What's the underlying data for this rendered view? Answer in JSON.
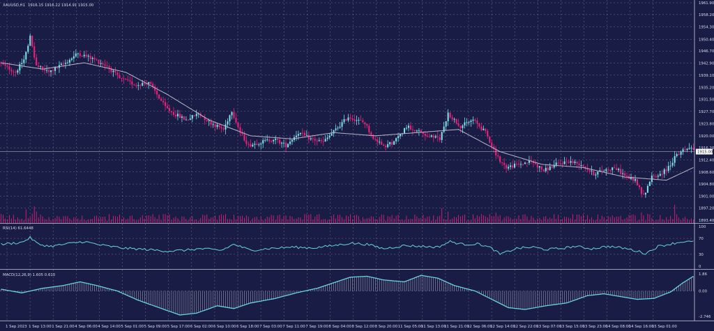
{
  "window": {
    "symbol": "XAUUSD,H1",
    "ohlc": "1916.15 1916.22 1914.91 1915.00"
  },
  "colors": {
    "background": "#191d45",
    "bull": "#7fdfe8",
    "bear": "#e8237a",
    "ma_line": "#b8b8c8",
    "rsi_line": "#69d3e0",
    "macd_line": "#69d3e0",
    "volume": "#d7227a",
    "grid": "#b8bcd6",
    "current_price_tag": "#ffffff"
  },
  "chart_data": [
    {
      "type": "candlestick",
      "name": "price",
      "title": "XAUUSD,H1",
      "y_ticks": [
        "1961.90",
        "1958.20",
        "1954.30",
        "1950.40",
        "1946.70",
        "1942.90",
        "1939.10",
        "1935.20",
        "1931.50",
        "1927.70",
        "1923.80",
        "1920.00",
        "1916.20",
        "1912.40",
        "1908.60",
        "1904.80",
        "1901.00",
        "1897.20",
        "1893.40"
      ],
      "ylim": [
        1893.4,
        1961.9
      ],
      "current_price": "1915.00",
      "overlay": "moving average (grey line)",
      "volume": "pink histogram at bottom of price pane",
      "x_ticks": [
        "1 Sep 2023",
        "1 Sep 13:00",
        "1 Sep 21:00",
        "4 Sep 06:00",
        "4 Sep 14:00",
        "5 Sep 01:00",
        "5 Sep 09:00",
        "5 Sep 17:00",
        "6 Sep 02:00",
        "6 Sep 10:00",
        "6 Sep 18:00",
        "7 Sep 03:00",
        "7 Sep 11:00",
        "7 Sep 19:00",
        "8 Sep 04:00",
        "8 Sep 12:00",
        "8 Sep 20:00",
        "11 Sep 05:00",
        "11 Sep 13:00",
        "11 Sep 21:00",
        "12 Sep 06:00",
        "12 Sep 14:00",
        "12 Sep 22:00",
        "13 Sep 07:00",
        "13 Sep 15:00",
        "13 Sep 23:00",
        "14 Sep 08:00",
        "14 Sep 16:00",
        "15 Sep 01:00"
      ],
      "anchors": [
        [
          0,
          1943
        ],
        [
          8,
          1940
        ],
        [
          12,
          1944
        ],
        [
          15,
          1951
        ],
        [
          18,
          1942
        ],
        [
          24,
          1940
        ],
        [
          32,
          1943
        ],
        [
          38,
          1946
        ],
        [
          46,
          1944
        ],
        [
          52,
          1942
        ],
        [
          58,
          1938
        ],
        [
          66,
          1936
        ],
        [
          72,
          1937
        ],
        [
          80,
          1929
        ],
        [
          84,
          1927
        ],
        [
          90,
          1925
        ],
        [
          96,
          1927
        ],
        [
          102,
          1924
        ],
        [
          108,
          1922
        ],
        [
          112,
          1928
        ],
        [
          116,
          1921
        ],
        [
          120,
          1917
        ],
        [
          126,
          1918
        ],
        [
          132,
          1919
        ],
        [
          138,
          1917
        ],
        [
          144,
          1921
        ],
        [
          150,
          1919
        ],
        [
          156,
          1918
        ],
        [
          162,
          1922
        ],
        [
          168,
          1926
        ],
        [
          172,
          1925
        ],
        [
          176,
          1924
        ],
        [
          180,
          1919
        ],
        [
          186,
          1917
        ],
        [
          190,
          1918
        ],
        [
          196,
          1923
        ],
        [
          200,
          1922
        ],
        [
          206,
          1920
        ],
        [
          212,
          1919
        ],
        [
          216,
          1927
        ],
        [
          222,
          1923
        ],
        [
          228,
          1925
        ],
        [
          234,
          1921
        ],
        [
          240,
          1913
        ],
        [
          244,
          1910
        ],
        [
          250,
          1911
        ],
        [
          256,
          1912
        ],
        [
          262,
          1909
        ],
        [
          268,
          1911
        ],
        [
          274,
          1912
        ],
        [
          280,
          1911
        ],
        [
          286,
          1908
        ],
        [
          290,
          1909
        ],
        [
          296,
          1910
        ],
        [
          302,
          1907
        ],
        [
          306,
          1906
        ],
        [
          310,
          1901
        ],
        [
          314,
          1907
        ],
        [
          318,
          1908
        ],
        [
          322,
          1910
        ],
        [
          326,
          1914
        ],
        [
          330,
          1916
        ],
        [
          333,
          1916
        ]
      ],
      "ma_anchors": [
        [
          0,
          1943
        ],
        [
          20,
          1941
        ],
        [
          40,
          1943
        ],
        [
          60,
          1940
        ],
        [
          80,
          1933
        ],
        [
          100,
          1925
        ],
        [
          120,
          1920
        ],
        [
          140,
          1919
        ],
        [
          160,
          1921
        ],
        [
          180,
          1920
        ],
        [
          200,
          1921
        ],
        [
          220,
          1922
        ],
        [
          240,
          1915
        ],
        [
          260,
          1911
        ],
        [
          280,
          1910
        ],
        [
          300,
          1907
        ],
        [
          320,
          1906
        ],
        [
          333,
          1910
        ]
      ]
    },
    {
      "type": "line",
      "name": "RSI",
      "label": "RSI(14) 61.6448",
      "y_ticks": [
        "100",
        "70",
        "30",
        "0"
      ],
      "ylim": [
        0,
        100
      ],
      "anchors": [
        [
          0,
          55
        ],
        [
          10,
          60
        ],
        [
          14,
          72
        ],
        [
          18,
          55
        ],
        [
          24,
          50
        ],
        [
          34,
          58
        ],
        [
          40,
          62
        ],
        [
          46,
          55
        ],
        [
          52,
          50
        ],
        [
          60,
          45
        ],
        [
          70,
          42
        ],
        [
          80,
          38
        ],
        [
          88,
          40
        ],
        [
          96,
          44
        ],
        [
          106,
          40
        ],
        [
          112,
          55
        ],
        [
          120,
          40
        ],
        [
          130,
          45
        ],
        [
          140,
          48
        ],
        [
          150,
          46
        ],
        [
          160,
          52
        ],
        [
          168,
          58
        ],
        [
          176,
          55
        ],
        [
          184,
          44
        ],
        [
          194,
          52
        ],
        [
          202,
          50
        ],
        [
          210,
          48
        ],
        [
          216,
          62
        ],
        [
          222,
          55
        ],
        [
          230,
          56
        ],
        [
          236,
          45
        ],
        [
          240,
          30
        ],
        [
          248,
          45
        ],
        [
          256,
          48
        ],
        [
          262,
          42
        ],
        [
          270,
          45
        ],
        [
          276,
          50
        ],
        [
          284,
          44
        ],
        [
          292,
          50
        ],
        [
          300,
          45
        ],
        [
          306,
          38
        ],
        [
          310,
          32
        ],
        [
          316,
          50
        ],
        [
          322,
          56
        ],
        [
          328,
          62
        ],
        [
          333,
          61
        ]
      ]
    },
    {
      "type": "line+histogram",
      "name": "MACD",
      "label": "MACD(12,26,9) 1.605 0.610",
      "y_ticks": [
        "1.86",
        "0.00",
        "-2.746"
      ],
      "ylim": [
        -2.746,
        1.86
      ],
      "anchors": [
        [
          0,
          0.2
        ],
        [
          10,
          -0.2
        ],
        [
          20,
          0.3
        ],
        [
          30,
          0.6
        ],
        [
          38,
          1.0
        ],
        [
          46,
          0.6
        ],
        [
          56,
          0.0
        ],
        [
          66,
          -1.0
        ],
        [
          76,
          -1.8
        ],
        [
          86,
          -2.6
        ],
        [
          94,
          -2.4
        ],
        [
          104,
          -1.6
        ],
        [
          112,
          -1.9
        ],
        [
          120,
          -1.3
        ],
        [
          132,
          -0.8
        ],
        [
          142,
          -0.2
        ],
        [
          152,
          0.3
        ],
        [
          160,
          0.9
        ],
        [
          168,
          1.5
        ],
        [
          176,
          1.6
        ],
        [
          184,
          1.2
        ],
        [
          194,
          1.0
        ],
        [
          202,
          1.7
        ],
        [
          210,
          1.4
        ],
        [
          218,
          0.6
        ],
        [
          228,
          0.0
        ],
        [
          236,
          -0.9
        ],
        [
          244,
          -1.8
        ],
        [
          252,
          -2.0
        ],
        [
          262,
          -1.6
        ],
        [
          272,
          -1.3
        ],
        [
          282,
          -0.5
        ],
        [
          290,
          -0.3
        ],
        [
          298,
          -0.6
        ],
        [
          306,
          -0.9
        ],
        [
          314,
          -0.8
        ],
        [
          322,
          -0.1
        ],
        [
          328,
          0.9
        ],
        [
          333,
          1.6
        ]
      ]
    }
  ]
}
